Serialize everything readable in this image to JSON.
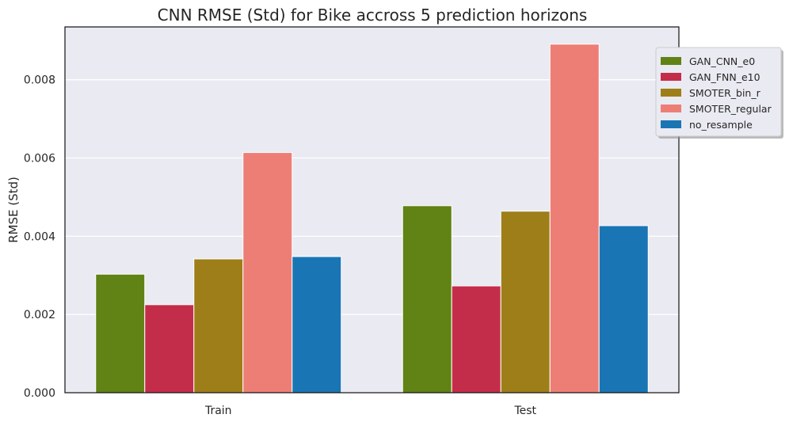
{
  "chart_data": {
    "type": "bar",
    "title": "CNN RMSE (Std) for Bike accross 5 prediction horizons",
    "xlabel": "",
    "ylabel": "RMSE (Std)",
    "categories": [
      "Train",
      "Test"
    ],
    "series": [
      {
        "name": "GAN_CNN_e0",
        "color": "#618214",
        "values": [
          0.00303,
          0.00478
        ]
      },
      {
        "name": "GAN_FNN_e10",
        "color": "#c42d49",
        "values": [
          0.00225,
          0.00273
        ]
      },
      {
        "name": "SMOTER_bin_r",
        "color": "#9e7e19",
        "values": [
          0.00342,
          0.00464
        ]
      },
      {
        "name": "SMOTER_regular",
        "color": "#ed7e76",
        "values": [
          0.00614,
          0.00891
        ]
      },
      {
        "name": "no_resample",
        "color": "#1a75b4",
        "values": [
          0.00348,
          0.00427
        ]
      }
    ],
    "ylim": [
      0,
      0.00935
    ],
    "yticks": [
      "0.000",
      "0.002",
      "0.004",
      "0.006",
      "0.008"
    ],
    "ytick_values": [
      0,
      0.002,
      0.004,
      0.006,
      0.008
    ],
    "grid": true,
    "legend": "top-right"
  }
}
